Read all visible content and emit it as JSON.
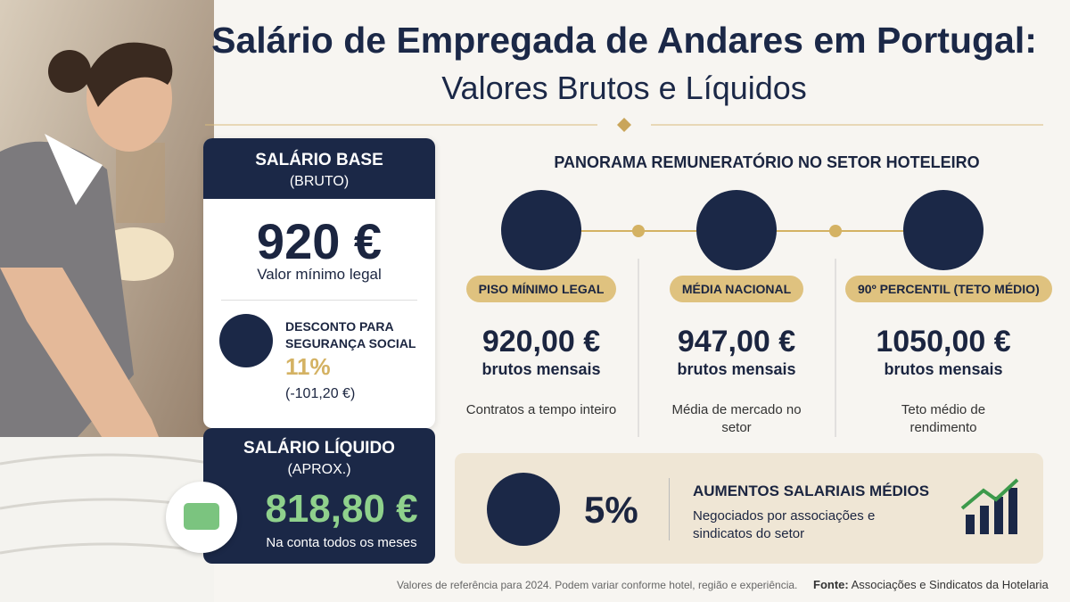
{
  "header": {
    "title": "Salário de Empregada de Andares em Portugal:",
    "subtitle": "Valores Brutos e Líquidos"
  },
  "base_card": {
    "title": "SALÁRIO BASE",
    "subtitle": "(BRUTO)",
    "amount": "920 €",
    "amount_note": "Valor mínimo legal",
    "deduction_label": "DESCONTO PARA SEGURANÇA SOCIAL",
    "deduction_rate": "11%",
    "deduction_amount": "(-101,20 €)"
  },
  "net_card": {
    "title": "SALÁRIO LÍQUIDO",
    "subtitle": "(APROX.)",
    "amount": "818,80 €",
    "note": "Na conta todos os meses"
  },
  "overview": {
    "title": "PANORAMA REMUNERATÓRIO NO SETOR HOTELEIRO",
    "items": [
      {
        "label": "PISO MÍNIMO LEGAL",
        "amount": "920,00 €",
        "unit": "brutos mensais",
        "note": "Contratos a tempo inteiro"
      },
      {
        "label": "MÉDIA NACIONAL",
        "amount": "947,00 €",
        "unit": "brutos mensais",
        "note": "Média de mercado no setor"
      },
      {
        "label": "90º PERCENTIL (TETO MÉDIO)",
        "amount": "1050,00 €",
        "unit": "brutos mensais",
        "note": "Teto médio de rendimento"
      }
    ]
  },
  "raises": {
    "rate": "5%",
    "title": "AUMENTOS SALARIAIS MÉDIOS",
    "text": "Negociados por associações e sindicatos do setor"
  },
  "footer": {
    "note": "Valores de referência para 2024. Podem variar conforme hotel, região e experiência.",
    "source_label": "Fonte:",
    "source": "Associações e Sindicatos da Hotelaria"
  }
}
